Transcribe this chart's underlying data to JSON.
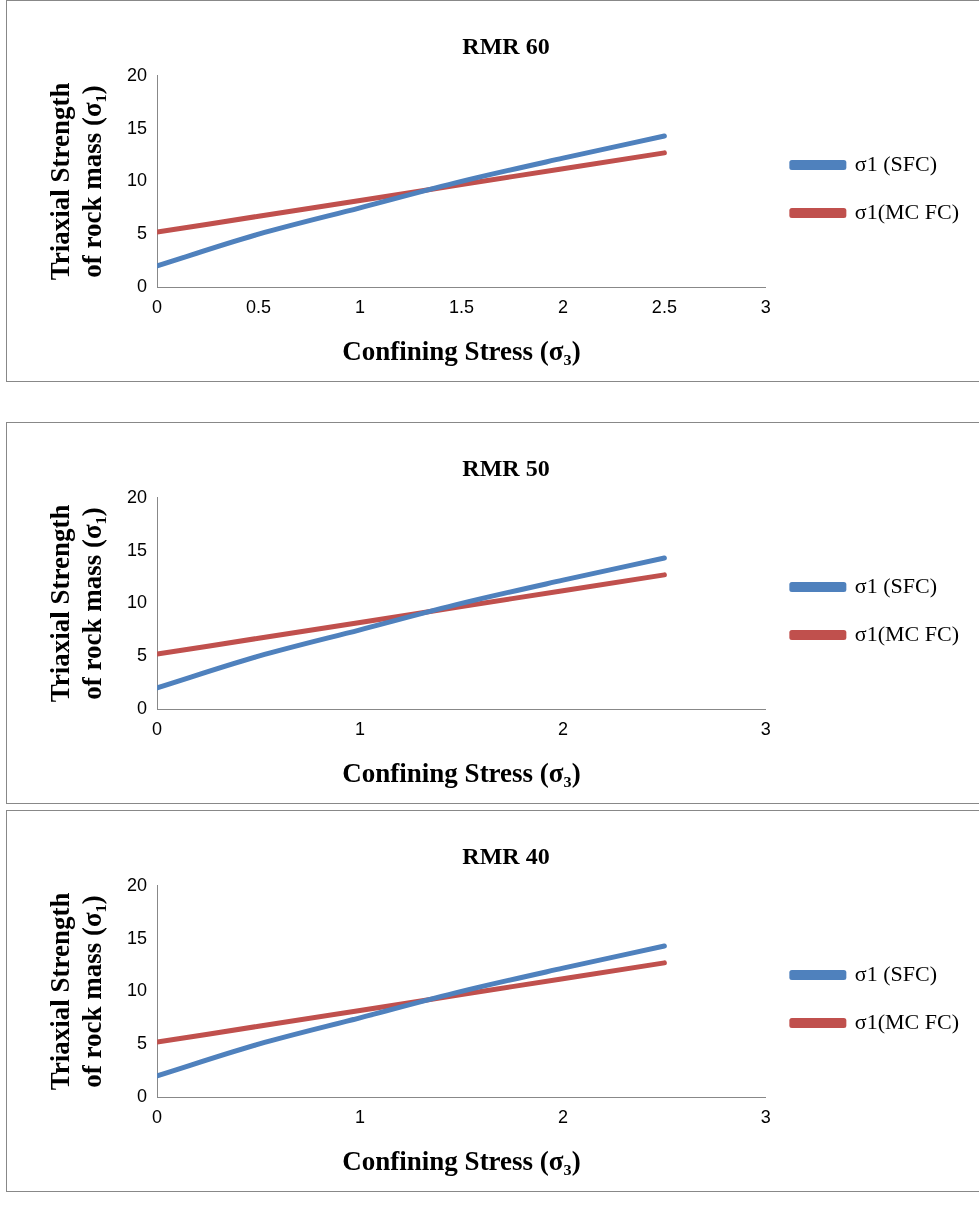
{
  "chart_data": [
    {
      "type": "line",
      "title": "RMR 60",
      "xlabel": "Confining Stress (σ₃)",
      "ylabel": "Triaxial Strength of rock mass (σ₁)",
      "x": [
        0,
        0.5,
        1,
        1.5,
        2,
        2.5
      ],
      "series": [
        {
          "name": "σ1 (SFC)",
          "color": "#4f81bd",
          "values": [
            2.0,
            5.0,
            7.5,
            10.0,
            12.2,
            14.3
          ]
        },
        {
          "name": "σ1(MC FC)",
          "color": "#c0504d",
          "values": [
            5.2,
            6.7,
            8.2,
            9.7,
            11.2,
            12.7
          ]
        }
      ],
      "xlim": [
        0,
        3
      ],
      "xticks": [
        0,
        0.5,
        1,
        1.5,
        2,
        2.5,
        3
      ],
      "ylim": [
        0,
        20
      ],
      "yticks": [
        0,
        5,
        10,
        15,
        20
      ],
      "grid": false,
      "legend": "right",
      "marker": "none"
    },
    {
      "type": "line",
      "title": "RMR 50",
      "xlabel": "Confining Stress (σ₃)",
      "ylabel": "Triaxial Strength of rock mass (σ₁)",
      "x": [
        0,
        0.5,
        1,
        1.5,
        2,
        2.5
      ],
      "series": [
        {
          "name": "σ1 (SFC)",
          "color": "#4f81bd",
          "values": [
            2.0,
            5.0,
            7.5,
            10.0,
            12.2,
            14.3
          ]
        },
        {
          "name": "σ1(MC FC)",
          "color": "#c0504d",
          "values": [
            5.2,
            6.7,
            8.2,
            9.7,
            11.2,
            12.7
          ]
        }
      ],
      "xlim": [
        0,
        3
      ],
      "xticks": [
        0,
        1,
        2,
        3
      ],
      "ylim": [
        0,
        20
      ],
      "yticks": [
        0,
        5,
        10,
        15,
        20
      ],
      "grid": false,
      "legend": "right",
      "marker": "none"
    },
    {
      "type": "line",
      "title": "RMR 40",
      "xlabel": "Confining Stress (σ₃)",
      "ylabel": "Triaxial Strength of rock mass (σ₁)",
      "x": [
        0,
        0.5,
        1,
        1.5,
        2,
        2.5
      ],
      "series": [
        {
          "name": "σ1 (SFC)",
          "color": "#4f81bd",
          "values": [
            2.0,
            5.0,
            7.5,
            10.0,
            12.2,
            14.3
          ]
        },
        {
          "name": "σ1(MC FC)",
          "color": "#c0504d",
          "values": [
            5.2,
            6.7,
            8.2,
            9.7,
            11.2,
            12.7
          ]
        }
      ],
      "xlim": [
        0,
        3
      ],
      "xticks": [
        0,
        1,
        2,
        3
      ],
      "ylim": [
        0,
        20
      ],
      "yticks": [
        0,
        5,
        10,
        15,
        20
      ],
      "grid": false,
      "legend": "right",
      "marker": "none"
    }
  ]
}
